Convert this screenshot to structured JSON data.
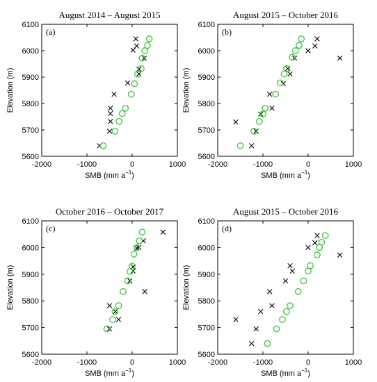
{
  "colors": {
    "modelled": "#39c639",
    "measured": "#000000"
  },
  "chart_data": [
    {
      "type": "scatter",
      "title": "August  2014 – August  2015",
      "panel_label": "(a)",
      "xlabel": "SMB (mm a",
      "xlabel_sup": "−1",
      "ylabel": "Elevation (m)",
      "xlim": [
        -2000,
        1000
      ],
      "ylim": [
        5600,
        6100
      ],
      "xticks": [
        -2000,
        -1000,
        0,
        1000
      ],
      "yticks": [
        5600,
        5700,
        5800,
        5900,
        6000,
        6100
      ],
      "series": [
        {
          "marker": "cross",
          "points": [
            [
              80,
              6045
            ],
            [
              100,
              6018
            ],
            [
              20,
              6002
            ],
            [
              270,
              5972
            ],
            [
              150,
              5930
            ],
            [
              150,
              5912
            ],
            [
              -100,
              5878
            ],
            [
              -400,
              5835
            ],
            [
              -480,
              5782
            ],
            [
              -480,
              5762
            ],
            [
              -480,
              5732
            ],
            [
              -500,
              5695
            ],
            [
              -720,
              5640
            ]
          ]
        },
        {
          "marker": "circle",
          "points": [
            [
              380,
              6045
            ],
            [
              340,
              6020
            ],
            [
              280,
              6000
            ],
            [
              220,
              5972
            ],
            [
              200,
              5932
            ],
            [
              120,
              5912
            ],
            [
              50,
              5875
            ],
            [
              -20,
              5835
            ],
            [
              -150,
              5782
            ],
            [
              -220,
              5762
            ],
            [
              -290,
              5732
            ],
            [
              -380,
              5695
            ],
            [
              -640,
              5640
            ]
          ]
        }
      ]
    },
    {
      "type": "scatter",
      "title": "August  2015 – October  2016",
      "panel_label": "(b)",
      "xlabel": "SMB (mm a",
      "xlabel_sup": "−1",
      "ylabel": "Elevation (m)",
      "xlim": [
        -2000,
        1000
      ],
      "ylim": [
        5600,
        6100
      ],
      "xticks": [
        -2000,
        -1000,
        0,
        1000
      ],
      "yticks": [
        5600,
        5700,
        5800,
        5900,
        6000,
        6100
      ],
      "series": [
        {
          "marker": "cross",
          "points": [
            [
              200,
              6045
            ],
            [
              150,
              6018
            ],
            [
              0,
              6000
            ],
            [
              -300,
              5972
            ],
            [
              -450,
              5932
            ],
            [
              -400,
              5912
            ],
            [
              -550,
              5875
            ],
            [
              -850,
              5835
            ],
            [
              -800,
              5782
            ],
            [
              -1050,
              5760
            ],
            [
              -1150,
              5695
            ],
            [
              -1600,
              5730
            ],
            [
              -1250,
              5640
            ],
            [
              700,
              5972
            ]
          ]
        },
        {
          "marker": "circle",
          "points": [
            [
              -150,
              6045
            ],
            [
              -200,
              6020
            ],
            [
              -280,
              6000
            ],
            [
              -350,
              5975
            ],
            [
              -480,
              5932
            ],
            [
              -530,
              5912
            ],
            [
              -620,
              5878
            ],
            [
              -720,
              5835
            ],
            [
              -950,
              5782
            ],
            [
              -1000,
              5760
            ],
            [
              -1080,
              5732
            ],
            [
              -1200,
              5695
            ],
            [
              -1500,
              5640
            ]
          ]
        }
      ]
    },
    {
      "type": "scatter",
      "title": "October  2016 – October  2017",
      "panel_label": "(c)",
      "xlabel": "SMB (mm a",
      "xlabel_sup": "−1",
      "ylabel": "Elevation (m)",
      "xlim": [
        -2000,
        1000
      ],
      "ylim": [
        5600,
        6100
      ],
      "xticks": [
        -2000,
        -1000,
        0,
        1000
      ],
      "yticks": [
        5600,
        5700,
        5800,
        5900,
        6000,
        6100
      ],
      "series": [
        {
          "marker": "cross",
          "points": [
            [
              680,
              6058
            ],
            [
              250,
              6025
            ],
            [
              150,
              6000
            ],
            [
              100,
              5998
            ],
            [
              20,
              5928
            ],
            [
              20,
              5912
            ],
            [
              -50,
              5875
            ],
            [
              280,
              5835
            ],
            [
              -500,
              5782
            ],
            [
              -370,
              5760
            ],
            [
              -300,
              5730
            ],
            [
              -500,
              5695
            ]
          ]
        },
        {
          "marker": "circle",
          "points": [
            [
              220,
              6058
            ],
            [
              160,
              6025
            ],
            [
              100,
              6000
            ],
            [
              40,
              5975
            ],
            [
              0,
              5930
            ],
            [
              -50,
              5910
            ],
            [
              -100,
              5875
            ],
            [
              -200,
              5835
            ],
            [
              -300,
              5782
            ],
            [
              -380,
              5760
            ],
            [
              -430,
              5730
            ],
            [
              -560,
              5695
            ]
          ]
        }
      ]
    },
    {
      "type": "scatter",
      "title": "August  2015 – October  2016",
      "panel_label": "(d)",
      "xlabel": "SMB (mm a",
      "xlabel_sup": "−1",
      "ylabel": "Elevation (m)",
      "xlim": [
        -2000,
        1000
      ],
      "ylim": [
        5600,
        6100
      ],
      "xticks": [
        -2000,
        -1000,
        0,
        1000
      ],
      "yticks": [
        5600,
        5700,
        5800,
        5900,
        6000,
        6100
      ],
      "series": [
        {
          "marker": "cross",
          "points": [
            [
              200,
              6045
            ],
            [
              150,
              6018
            ],
            [
              0,
              6000
            ],
            [
              -400,
              5932
            ],
            [
              -350,
              5912
            ],
            [
              -500,
              5875
            ],
            [
              -850,
              5835
            ],
            [
              -800,
              5782
            ],
            [
              -1050,
              5760
            ],
            [
              -1150,
              5695
            ],
            [
              -1600,
              5730
            ],
            [
              -1250,
              5640
            ],
            [
              700,
              5972
            ]
          ]
        },
        {
          "marker": "circle",
          "points": [
            [
              380,
              6045
            ],
            [
              300,
              6020
            ],
            [
              250,
              6000
            ],
            [
              200,
              5972
            ],
            [
              50,
              5932
            ],
            [
              0,
              5912
            ],
            [
              -100,
              5875
            ],
            [
              -220,
              5835
            ],
            [
              -400,
              5782
            ],
            [
              -480,
              5760
            ],
            [
              -570,
              5730
            ],
            [
              -700,
              5695
            ],
            [
              -900,
              5640
            ]
          ]
        }
      ]
    }
  ]
}
